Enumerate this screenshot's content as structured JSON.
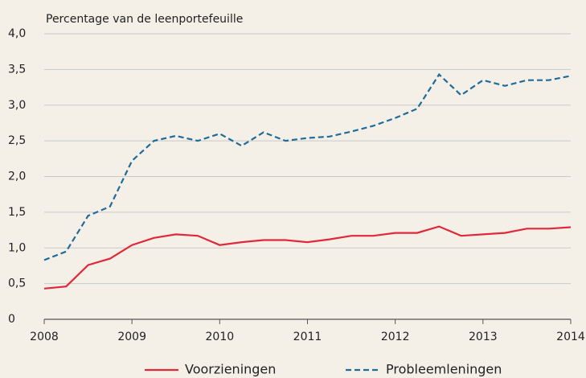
{
  "chart_data": {
    "type": "line",
    "y_axis_label": "Percentage van de leenportefeuille",
    "x": [
      2008,
      2008.25,
      2008.5,
      2008.75,
      2009,
      2009.25,
      2009.5,
      2009.75,
      2010,
      2010.25,
      2010.5,
      2010.75,
      2011,
      2011.25,
      2011.5,
      2011.75,
      2012,
      2012.25,
      2012.5,
      2012.75,
      2013,
      2013.25,
      2013.5,
      2013.75,
      2014
    ],
    "series": [
      {
        "name": "Voorzieningen",
        "color": "#e0283a",
        "line_style": "solid",
        "values": [
          0.43,
          0.46,
          0.76,
          0.85,
          1.04,
          1.14,
          1.19,
          1.17,
          1.04,
          1.08,
          1.11,
          1.11,
          1.08,
          1.12,
          1.17,
          1.17,
          1.21,
          1.21,
          1.3,
          1.17,
          1.19,
          1.21,
          1.27,
          1.27,
          1.29
        ]
      },
      {
        "name": "Probleemleningen",
        "color": "#1f6b9a",
        "line_style": "dashed",
        "values": [
          0.83,
          0.95,
          1.45,
          1.58,
          2.22,
          2.5,
          2.57,
          2.5,
          2.6,
          2.43,
          2.62,
          2.5,
          2.54,
          2.56,
          2.63,
          2.71,
          2.82,
          2.95,
          3.43,
          3.14,
          3.35,
          3.27,
          3.35,
          3.35,
          3.41
        ]
      }
    ],
    "xlim": [
      2008,
      2014
    ],
    "xticks": [
      2008,
      2009,
      2010,
      2011,
      2012,
      2013,
      2014
    ],
    "ylim": [
      0,
      4
    ],
    "yticks": [
      0,
      {
        "value": 0.5,
        "label": "0,5"
      },
      {
        "value": 1,
        "label": "1,0"
      },
      {
        "value": 1.5,
        "label": "1,5"
      },
      {
        "value": 2,
        "label": "2,0"
      },
      {
        "value": 2.5,
        "label": "2,5"
      },
      {
        "value": 3,
        "label": "3,0"
      },
      {
        "value": 3.5,
        "label": "3,5"
      },
      {
        "value": 4,
        "label": "4,0"
      }
    ],
    "grid": true,
    "legend": "bottom"
  }
}
